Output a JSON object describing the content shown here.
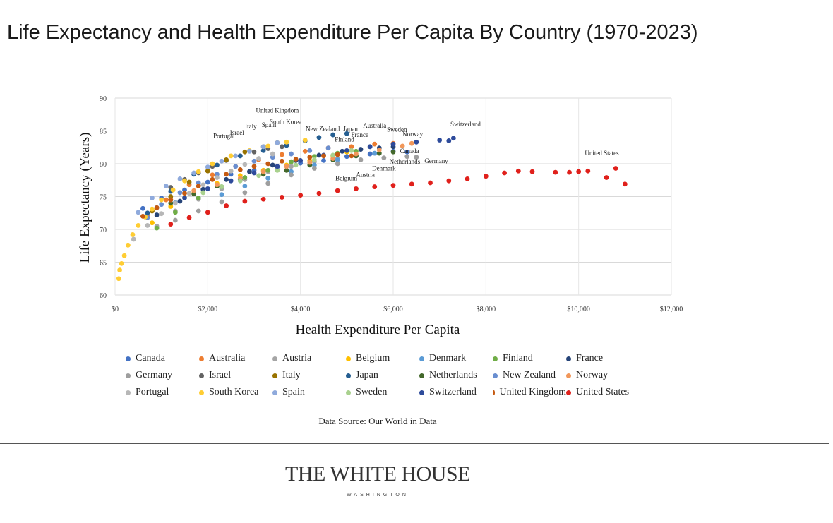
{
  "header": {
    "title": "Life Expectancy and Health Expenditure Per Capita By Country (1970-2023)"
  },
  "footer": {
    "source": "Data Source: Our World in Data",
    "brand_name": "THE WHITE HOUSE",
    "brand_sub": "WASHINGTON"
  },
  "chart_data": {
    "type": "scatter",
    "xlabel": "Health Expenditure Per Capita",
    "ylabel": "Life Expectancy (Years)",
    "xlim": [
      0,
      12000
    ],
    "ylim": [
      60,
      90
    ],
    "xticks": [
      0,
      2000,
      4000,
      6000,
      8000,
      10000,
      12000
    ],
    "xtick_labels": [
      "$0",
      "$2,000",
      "$4,000",
      "$6,000",
      "$8,000",
      "$10,000",
      "$12,000"
    ],
    "yticks": [
      60,
      65,
      70,
      75,
      80,
      85,
      90
    ],
    "grid": true,
    "legend_position": "bottom",
    "series": [
      {
        "name": "Canada",
        "color": "#4472c4",
        "x": [
          600,
          1000,
          1500,
          2000,
          2500,
          3000,
          3500,
          4000,
          4500,
          5000,
          5500,
          6000,
          6300
        ],
        "y": [
          73.2,
          74.8,
          76.0,
          77.2,
          78.4,
          79.0,
          79.5,
          80.1,
          80.5,
          81.1,
          81.5,
          81.9,
          81.8
        ]
      },
      {
        "name": "Australia",
        "color": "#ed7d31",
        "x": [
          700,
          1100,
          1600,
          2100,
          2600,
          3100,
          3600,
          4100,
          4600,
          5100,
          5600,
          6000
        ],
        "y": [
          72.0,
          74.5,
          76.8,
          78.3,
          79.6,
          80.6,
          81.4,
          81.9,
          82.4,
          82.6,
          83.0,
          83.1
        ]
      },
      {
        "name": "Austria",
        "color": "#a5a5a5",
        "x": [
          900,
          1300,
          1800,
          2300,
          2800,
          3300,
          3800,
          4300,
          4800,
          5200,
          5600
        ],
        "y": [
          70.5,
          72.8,
          74.6,
          76.2,
          77.6,
          78.8,
          79.6,
          80.3,
          80.8,
          81.2,
          81.6
        ]
      },
      {
        "name": "Belgium",
        "color": "#ffc000",
        "x": [
          800,
          1200,
          1700,
          2200,
          2700,
          3200,
          3700,
          4200,
          4700,
          5000
        ],
        "y": [
          71.0,
          73.5,
          75.5,
          77.0,
          78.2,
          79.0,
          79.8,
          80.5,
          81.2,
          81.8
        ]
      },
      {
        "name": "Denmark",
        "color": "#5b9bd5",
        "x": [
          900,
          1300,
          1800,
          2300,
          2800,
          3300,
          3800,
          4300,
          4800,
          5200,
          5600
        ],
        "y": [
          73.3,
          74.1,
          74.8,
          75.3,
          76.6,
          77.8,
          78.8,
          79.8,
          80.6,
          81.2,
          81.6
        ]
      },
      {
        "name": "Finland",
        "color": "#70ad47",
        "x": [
          900,
          1300,
          1800,
          2300,
          2800,
          3300,
          3800,
          4300,
          4800,
          5200
        ],
        "y": [
          70.2,
          72.6,
          74.8,
          76.5,
          77.9,
          79.0,
          80.3,
          81.1,
          81.6,
          81.9
        ]
      },
      {
        "name": "France",
        "color": "#264478",
        "x": [
          900,
          1400,
          1900,
          2400,
          2900,
          3400,
          3900,
          4400,
          4900,
          5300,
          5700,
          6000
        ],
        "y": [
          72.2,
          74.3,
          76.1,
          77.6,
          78.8,
          79.8,
          80.5,
          81.3,
          81.9,
          82.2,
          82.4,
          82.6
        ]
      },
      {
        "name": "Germany",
        "color": "#9e9e9e",
        "x": [
          1300,
          1800,
          2300,
          2800,
          3300,
          3800,
          4300,
          4800,
          5300,
          5800,
          6300,
          6500
        ],
        "y": [
          71.4,
          72.8,
          74.2,
          75.6,
          77.0,
          78.3,
          79.3,
          80.0,
          80.6,
          80.9,
          81.1,
          81.0
        ]
      },
      {
        "name": "Israel",
        "color": "#636363",
        "x": [
          1200,
          1500,
          1800,
          2100,
          2400,
          2700,
          3000,
          3300,
          3600
        ],
        "y": [
          76.4,
          77.6,
          78.6,
          79.6,
          80.5,
          81.2,
          81.8,
          82.3,
          82.6
        ]
      },
      {
        "name": "Italy",
        "color": "#997300",
        "x": [
          800,
          1200,
          1600,
          2000,
          2400,
          2800,
          3200,
          3500
        ],
        "y": [
          72.8,
          75.0,
          77.2,
          78.9,
          80.6,
          81.8,
          82.6,
          83.2
        ]
      },
      {
        "name": "Japan",
        "color": "#255e91",
        "x": [
          700,
          1200,
          1700,
          2200,
          2700,
          3200,
          3700,
          4100,
          4400,
          4700,
          5000
        ],
        "y": [
          72.5,
          75.8,
          78.4,
          79.8,
          81.2,
          82.0,
          82.8,
          83.5,
          84.0,
          84.4,
          84.6
        ]
      },
      {
        "name": "Netherlands",
        "color": "#43682b",
        "x": [
          1200,
          1700,
          2200,
          2700,
          3200,
          3700,
          4200,
          4700,
          5200,
          5700,
          6000
        ],
        "y": [
          74.0,
          75.4,
          76.6,
          77.6,
          78.4,
          79.0,
          79.8,
          80.6,
          81.2,
          81.6,
          81.8
        ]
      },
      {
        "name": "New Zealand",
        "color": "#698ed0",
        "x": [
          700,
          1000,
          1400,
          1800,
          2200,
          2600,
          3000,
          3400,
          3800,
          4200,
          4600
        ],
        "y": [
          71.8,
          73.8,
          75.6,
          77.1,
          78.4,
          79.6,
          80.4,
          81.0,
          81.5,
          82.0,
          82.4
        ]
      },
      {
        "name": "Norway",
        "color": "#f1975a",
        "x": [
          1200,
          1700,
          2200,
          2700,
          3200,
          3700,
          4200,
          4700,
          5200,
          5700,
          6200,
          6400
        ],
        "y": [
          74.5,
          75.9,
          76.8,
          77.8,
          78.8,
          79.6,
          80.2,
          80.8,
          81.5,
          82.1,
          82.7,
          83.1
        ]
      },
      {
        "name": "Portugal",
        "color": "#b7b7b7",
        "x": [
          400,
          700,
          1000,
          1300,
          1600,
          1900,
          2200,
          2500,
          2800,
          3100,
          3400
        ],
        "y": [
          68.5,
          70.6,
          72.4,
          74.0,
          75.5,
          76.8,
          77.9,
          78.9,
          79.9,
          80.8,
          81.5
        ]
      },
      {
        "name": "South Korea",
        "color": "#ffcd33",
        "x": [
          80,
          100,
          140,
          200,
          280,
          380,
          500,
          650,
          800,
          1000,
          1250,
          1500,
          1800,
          2100,
          2500,
          2900,
          3300,
          3700,
          4100
        ],
        "y": [
          62.5,
          63.8,
          64.8,
          66.0,
          67.6,
          69.2,
          70.6,
          71.9,
          73.1,
          74.5,
          76.0,
          77.4,
          78.8,
          80.0,
          81.2,
          82.0,
          82.7,
          83.3,
          83.6
        ]
      },
      {
        "name": "Spain",
        "color": "#8faadc",
        "x": [
          500,
          800,
          1100,
          1400,
          1700,
          2000,
          2300,
          2600,
          2900,
          3200,
          3500
        ],
        "y": [
          72.6,
          74.8,
          76.6,
          77.7,
          78.6,
          79.5,
          80.4,
          81.2,
          81.9,
          82.6,
          83.2
        ]
      },
      {
        "name": "Sweden",
        "color": "#a9d18e",
        "x": [
          1500,
          1900,
          2300,
          2700,
          3100,
          3500,
          3900,
          4300,
          4700,
          5100,
          5500
        ],
        "y": [
          74.8,
          75.6,
          76.5,
          77.4,
          78.2,
          79.0,
          79.8,
          80.6,
          81.3,
          82.0,
          82.6
        ]
      },
      {
        "name": "Switzerland",
        "color": "#2e4b9b",
        "x": [
          1500,
          2000,
          2500,
          3000,
          3500,
          4000,
          4500,
          5000,
          5500,
          6000,
          6500,
          7000,
          7200,
          7300
        ],
        "y": [
          74.8,
          76.2,
          77.4,
          78.6,
          79.6,
          80.5,
          81.3,
          82.0,
          82.6,
          83.0,
          83.3,
          83.6,
          83.5,
          83.9
        ]
      },
      {
        "name": "United Kingdom",
        "color": "#c55a11",
        "x": [
          600,
          900,
          1200,
          1500,
          1800,
          2100,
          2400,
          2700,
          3000,
          3300,
          3600,
          3900,
          4200,
          4500,
          4800,
          5100
        ],
        "y": [
          72.0,
          73.3,
          74.5,
          75.5,
          76.6,
          77.6,
          78.4,
          79.1,
          79.6,
          80.0,
          80.4,
          80.7,
          81.0,
          81.2,
          81.4,
          81.2
        ]
      },
      {
        "name": "United States",
        "color": "#e0201b",
        "x": [
          1200,
          1600,
          2000,
          2400,
          2800,
          3200,
          3600,
          4000,
          4400,
          4800,
          5200,
          5600,
          6000,
          6400,
          6800,
          7200,
          7600,
          8000,
          8400,
          8700,
          9000,
          9500,
          9800,
          10000,
          10200,
          10600,
          10800,
          11000
        ],
        "y": [
          70.8,
          71.8,
          72.6,
          73.6,
          74.3,
          74.6,
          74.9,
          75.2,
          75.5,
          75.9,
          76.2,
          76.5,
          76.7,
          76.9,
          77.1,
          77.4,
          77.7,
          78.1,
          78.6,
          78.9,
          78.8,
          78.7,
          78.7,
          78.8,
          78.9,
          77.9,
          79.3,
          76.9
        ]
      }
    ],
    "annotations": [
      {
        "text": "United Kingdom",
        "x": 3500,
        "y": 87.8
      },
      {
        "text": "South Korea",
        "x": 3680,
        "y": 86.1
      },
      {
        "text": "Italy",
        "x": 2930,
        "y": 85.4
      },
      {
        "text": "Spain",
        "x": 3320,
        "y": 85.6
      },
      {
        "text": "Israel",
        "x": 2630,
        "y": 84.4
      },
      {
        "text": "Portugal",
        "x": 2350,
        "y": 83.9
      },
      {
        "text": "New Zealand",
        "x": 4480,
        "y": 85.0
      },
      {
        "text": "Japan",
        "x": 5080,
        "y": 85.0
      },
      {
        "text": "Australia",
        "x": 5600,
        "y": 85.5
      },
      {
        "text": "Sweden",
        "x": 6080,
        "y": 84.9
      },
      {
        "text": "Norway",
        "x": 6420,
        "y": 84.2
      },
      {
        "text": "France",
        "x": 5280,
        "y": 84.1
      },
      {
        "text": "Finland",
        "x": 4950,
        "y": 83.4
      },
      {
        "text": "Switzerland",
        "x": 7560,
        "y": 85.7
      },
      {
        "text": "Canada",
        "x": 6350,
        "y": 81.6
      },
      {
        "text": "Netherlands",
        "x": 6250,
        "y": 80.0
      },
      {
        "text": "Germany",
        "x": 6930,
        "y": 80.1
      },
      {
        "text": "Denmark",
        "x": 5800,
        "y": 79.0
      },
      {
        "text": "Austria",
        "x": 5400,
        "y": 78.0
      },
      {
        "text": "Belgium",
        "x": 4990,
        "y": 77.5
      },
      {
        "text": "United States",
        "x": 10500,
        "y": 81.3
      }
    ]
  }
}
